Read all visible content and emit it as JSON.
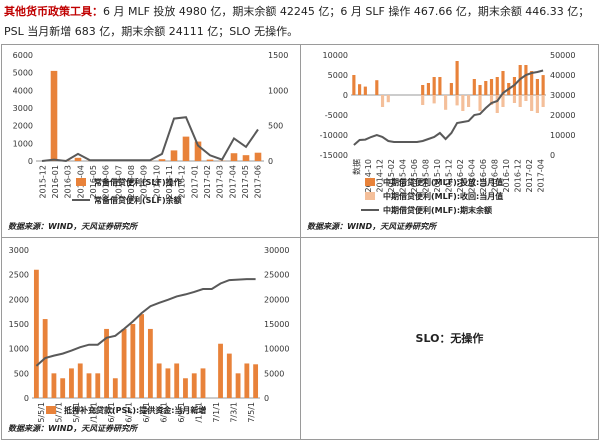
{
  "header": {
    "lead": "其他货币政策工具：",
    "line1": "6 月 MLF 投放 4980 亿，期末余额 42245 亿；6 月 SLF 操作 467.66 亿，期末余额 446.33 亿；",
    "line2": "PSL 当月新增 683 亿，期末余额 24111 亿；SLO 无操作。"
  },
  "source_label": "数据来源：WIND，天风证券研究所",
  "slo_text": "SLO：无操作",
  "colors": {
    "bar": "#e8823a",
    "bar_light": "#f4bf9a",
    "line": "#595959"
  },
  "chart_data": [
    {
      "type": "bar+line",
      "categories": [
        "2015-12",
        "2016-01",
        "2016-02",
        "2016-03",
        "2016-04",
        "2016-05",
        "2016-06",
        "2016-07",
        "2016-08",
        "2016-09",
        "2016-10",
        "2016-11",
        "2016-12",
        "2017-01",
        "2017-02",
        "2017-03",
        "2017-04",
        "2017-05",
        "2017-06"
      ],
      "xticks": [
        "2015-12",
        "2016-01",
        "2016-03",
        "2016-04",
        "2016-05",
        "2016-06",
        "2016-07",
        "2016-08",
        "2016-09",
        "2016-10",
        "2016-11",
        "2016-12",
        "2017-01",
        "2017-02",
        "2017-03",
        "2017-04",
        "2017-05",
        "2017-06"
      ],
      "left_axis": {
        "min": 0,
        "max": 6000,
        "ticks": [
          0,
          1000,
          2000,
          3000,
          4000,
          5000,
          6000
        ]
      },
      "right_axis": {
        "min": 0,
        "max": 1500,
        "ticks": [
          0,
          500,
          1000,
          1500
        ]
      },
      "series": [
        {
          "name": "常备借贷便利(SLF)操作",
          "kind": "bar",
          "axis": "left",
          "values": [
            0,
            5100,
            60,
            180,
            10,
            0,
            0,
            0,
            0,
            10,
            100,
            600,
            1380,
            1100,
            80,
            20,
            440,
            330,
            470
          ]
        },
        {
          "name": "常备借贷便利(SLF)余额",
          "kind": "line",
          "axis": "right",
          "values": [
            0,
            20,
            0,
            100,
            10,
            10,
            10,
            10,
            10,
            10,
            100,
            600,
            620,
            220,
            80,
            20,
            320,
            200,
            446
          ]
        }
      ]
    },
    {
      "type": "bar+line",
      "categories": [
        "2014-09",
        "2014-10",
        "2014-11",
        "2014-12",
        "2015-01",
        "2015-02",
        "2015-03",
        "2015-04",
        "2015-05",
        "2015-06",
        "2015-07",
        "2015-08",
        "2015-09",
        "2015-10",
        "2015-11",
        "2015-12",
        "2016-01",
        "2016-02",
        "2016-03",
        "2016-04",
        "2016-05",
        "2016-06",
        "2016-07",
        "2016-08",
        "2016-09",
        "2016-10",
        "2016-11",
        "2016-12",
        "2017-01",
        "2017-02",
        "2017-03",
        "2017-04",
        "2017-05",
        "2017-06"
      ],
      "xticks": [
        "数据",
        "2014-10",
        "2014-12",
        "2015-02",
        "2015-04",
        "2015-06",
        "2015-08",
        "2015-10",
        "2015-12",
        "2016-02",
        "2016-04",
        "2016-06",
        "2016-08",
        "2016-10",
        "2016-12",
        "2017-02",
        "2017-04"
      ],
      "left_axis": {
        "min": -15000,
        "max": 10000,
        "ticks": [
          -15000,
          -10000,
          -5000,
          0,
          5000,
          10000
        ]
      },
      "right_axis": {
        "min": 0,
        "max": 50000,
        "ticks": [
          0,
          10000,
          20000,
          30000,
          40000,
          50000
        ]
      },
      "series": [
        {
          "name": "中期借贷便利(MLF):投放:当月值",
          "kind": "bar",
          "axis": "left",
          "values": [
            5000,
            2700,
            2100,
            0,
            3700,
            0,
            0,
            0,
            0,
            0,
            0,
            0,
            2500,
            3000,
            4500,
            4500,
            0,
            3000,
            8500,
            0,
            0,
            4000,
            2500,
            3500,
            4000,
            4500,
            6000,
            3000,
            4500,
            7500,
            7500,
            6000,
            4000,
            4980
          ]
        },
        {
          "name": "中期借贷便利(MLF):收回:当月值",
          "kind": "bar_light",
          "axis": "left",
          "values": [
            0,
            0,
            0,
            0,
            0,
            -3000,
            -1800,
            0,
            0,
            0,
            0,
            0,
            -2500,
            0,
            -2100,
            0,
            -3700,
            0,
            -2600,
            -4000,
            -3000,
            0,
            -4000,
            0,
            -2500,
            -4500,
            -3000,
            0,
            -2000,
            -3000,
            -1500,
            -4000,
            -4500,
            -3000
          ]
        },
        {
          "name": "中期借贷便利(MLF):期末余额",
          "kind": "line",
          "axis": "right",
          "values": [
            5000,
            7500,
            7700,
            9000,
            10000,
            9000,
            7000,
            6500,
            6500,
            6500,
            6500,
            6500,
            7000,
            8000,
            9000,
            11000,
            8000,
            11000,
            16000,
            16500,
            17000,
            20000,
            20500,
            23500,
            26000,
            27000,
            31000,
            33000,
            35000,
            38000,
            40000,
            41000,
            41500,
            42245
          ]
        }
      ]
    },
    {
      "type": "bar+line",
      "categories": [
        "2015/5/1",
        "2015/6/1",
        "2015/7/1",
        "2015/8/1",
        "2015/9/1",
        "2015/10/1",
        "2015/11/1",
        "2015/12/1",
        "2016/1/1",
        "2016/2/1",
        "2016/3/1",
        "2016/4/1",
        "2016/5/1",
        "2016/6/1",
        "2016/7/1",
        "2016/8/1",
        "2016/9/1",
        "2016/10/1",
        "2016/11/1",
        "2016/12/1",
        "2017/1/1",
        "2017/2/1",
        "2017/3/1",
        "2017/4/1",
        "2017/5/1",
        "2017/6/1"
      ],
      "xticks": [
        "2015/5/1",
        "2015/7/1",
        "2015/9/1",
        "2015/11/1",
        "2016/1/1",
        "2016/3/1",
        "2016/5/1",
        "2016/7/1",
        "2016/9/1",
        "2016/11/1",
        "2017/1/1",
        "2017/3/1",
        "2017/5/1"
      ],
      "left_axis": {
        "min": 0,
        "max": 3000,
        "ticks": [
          0,
          500,
          1000,
          1500,
          2000,
          2500,
          3000
        ]
      },
      "right_axis": {
        "min": 0,
        "max": 30000,
        "ticks": [
          0,
          5000,
          10000,
          15000,
          20000,
          25000,
          30000
        ]
      },
      "series": [
        {
          "name": "抵押补充贷款(PSL):提供资金:当月新增",
          "kind": "bar",
          "axis": "left",
          "values": [
            2600,
            1600,
            500,
            400,
            600,
            700,
            500,
            500,
            1400,
            400,
            1400,
            1500,
            1700,
            1400,
            700,
            600,
            700,
            400,
            500,
            600,
            0,
            1100,
            900,
            500,
            700,
            683
          ]
        },
        {
          "name": "余额",
          "kind": "line",
          "axis": "right",
          "values": [
            6500,
            8100,
            8600,
            9000,
            9600,
            10300,
            10800,
            10800,
            12200,
            12600,
            14000,
            15500,
            17200,
            18600,
            19300,
            19900,
            20600,
            21000,
            21500,
            22100,
            22100,
            23200,
            23900,
            24000,
            24100,
            24111
          ]
        }
      ]
    }
  ]
}
